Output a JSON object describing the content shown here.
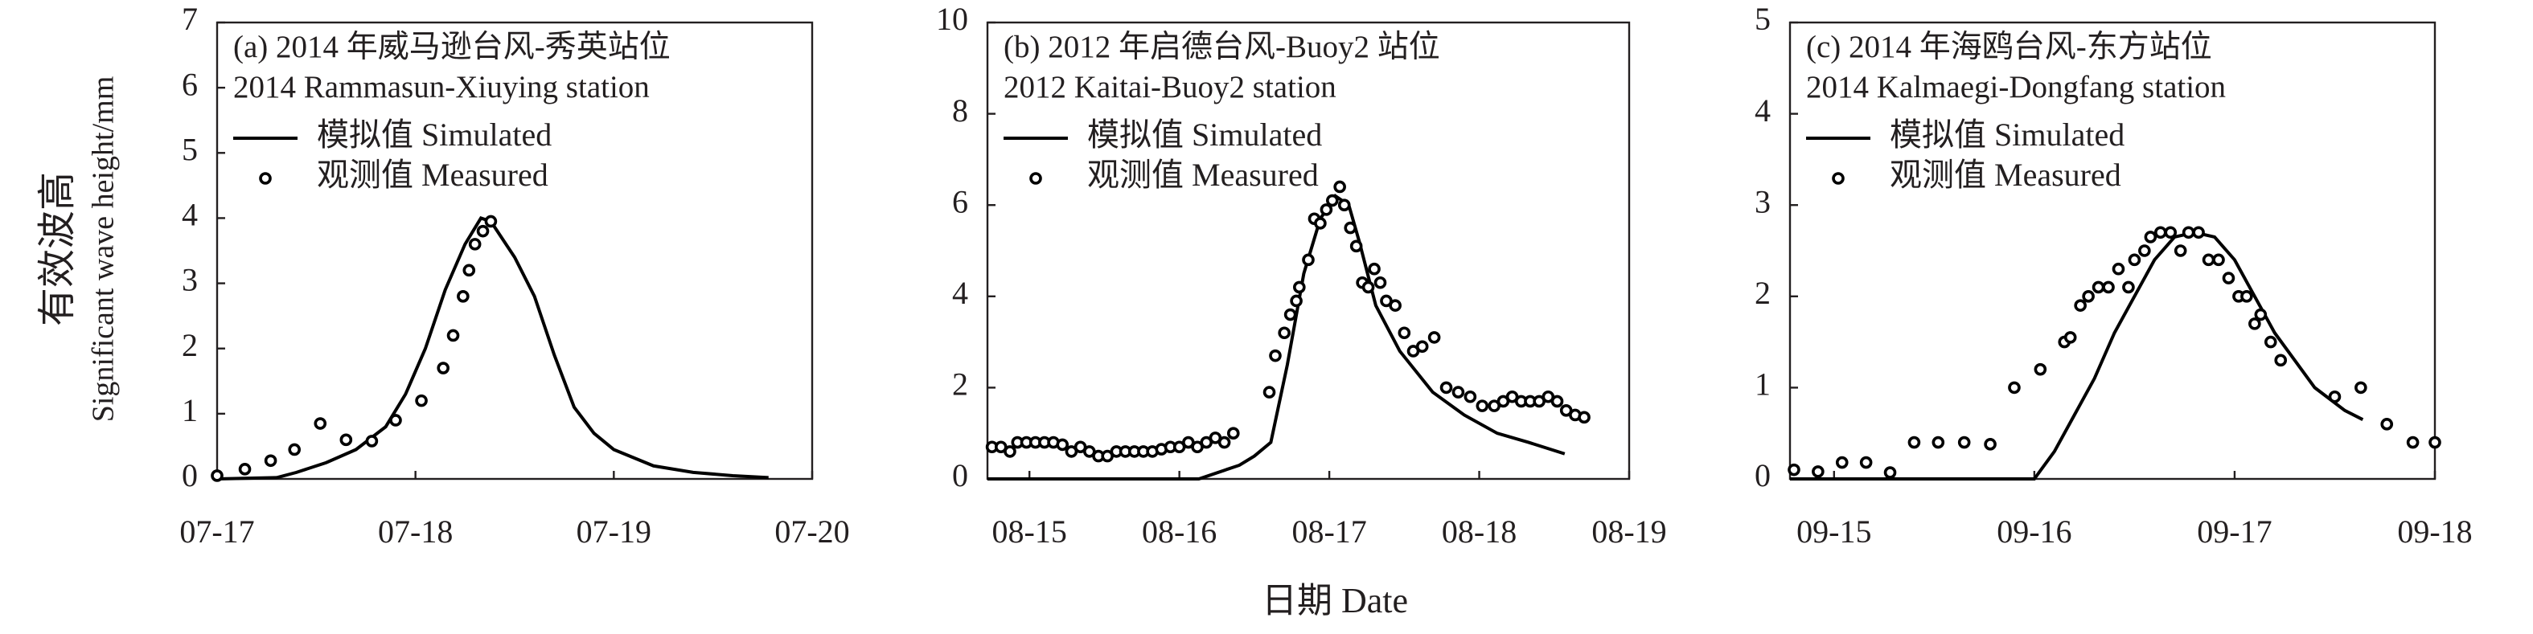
{
  "ylabel": [
    "有效波高",
    "Significant wave height/mm"
  ],
  "xlabel": "日期 Date",
  "chart_data": [
    {
      "type": "line",
      "title": "(a) 2014 年威马逊台风-秀英站位",
      "subtitle": "2014 Rammasun-Xiuying station",
      "xlim": [
        0,
        3
      ],
      "xticks": [
        {
          "value": 0,
          "label": "07-17"
        },
        {
          "value": 1,
          "label": "07-18"
        },
        {
          "value": 2,
          "label": "07-19"
        },
        {
          "value": 3,
          "label": "07-20"
        }
      ],
      "ylim": [
        0,
        7
      ],
      "yticks": [
        0,
        1,
        2,
        3,
        4,
        5,
        6,
        7
      ],
      "series": [
        {
          "name": "模拟值 Simulated",
          "color": "#000000",
          "marker": "line",
          "x": [
            0,
            0.3,
            0.4,
            0.55,
            0.7,
            0.85,
            0.95,
            1.05,
            1.15,
            1.25,
            1.33,
            1.38,
            1.5,
            1.6,
            1.7,
            1.8,
            1.9,
            2.0,
            2.2,
            2.4,
            2.6,
            2.78
          ],
          "values": [
            0,
            0.02,
            0.1,
            0.25,
            0.45,
            0.8,
            1.3,
            2.0,
            2.9,
            3.6,
            4.0,
            3.95,
            3.4,
            2.8,
            1.9,
            1.1,
            0.7,
            0.45,
            0.2,
            0.1,
            0.05,
            0.02
          ]
        },
        {
          "name": "观测值 Measured",
          "color": "#000000",
          "marker": "circle",
          "x": [
            0,
            0.14,
            0.27,
            0.39,
            0.52,
            0.65,
            0.78,
            0.9,
            1.03,
            1.14,
            1.19,
            1.24,
            1.27,
            1.3,
            1.34,
            1.38
          ],
          "values": [
            0.05,
            0.15,
            0.28,
            0.45,
            0.85,
            0.6,
            0.58,
            0.9,
            1.2,
            1.7,
            2.2,
            2.8,
            3.2,
            3.6,
            3.8,
            3.95
          ]
        }
      ]
    },
    {
      "type": "line",
      "title": "(b) 2012 年启德台风-Buoy2 站位",
      "subtitle": "2012 Kaitai-Buoy2 station",
      "xlim": [
        -0.28,
        4
      ],
      "xticks": [
        {
          "value": 0,
          "label": "08-15"
        },
        {
          "value": 1,
          "label": "08-16"
        },
        {
          "value": 2,
          "label": "08-17"
        },
        {
          "value": 3,
          "label": "08-18"
        },
        {
          "value": 4,
          "label": "08-19"
        }
      ],
      "ylim": [
        0,
        10
      ],
      "yticks": [
        0,
        2,
        4,
        6,
        8,
        10
      ],
      "series": [
        {
          "name": "模拟值 Simulated",
          "color": "#000000",
          "marker": "line",
          "x": [
            -0.28,
            1.13,
            1.4,
            1.5,
            1.61,
            1.72,
            1.83,
            1.94,
            2.04,
            2.13,
            2.2,
            2.31,
            2.47,
            2.69,
            2.9,
            3.12,
            3.33,
            3.57
          ],
          "values": [
            0,
            0,
            0.3,
            0.5,
            0.8,
            2.5,
            4.5,
            5.7,
            6.2,
            6.0,
            5.2,
            3.8,
            2.8,
            1.9,
            1.4,
            1.0,
            0.8,
            0.55
          ]
        },
        {
          "name": "观测值 Measured",
          "color": "#000000",
          "marker": "circle",
          "x": [
            -0.25,
            -0.19,
            -0.13,
            -0.08,
            -0.02,
            0.04,
            0.1,
            0.16,
            0.22,
            0.28,
            0.34,
            0.4,
            0.46,
            0.52,
            0.58,
            0.64,
            0.7,
            0.76,
            0.82,
            0.88,
            0.94,
            1.0,
            1.06,
            1.12,
            1.18,
            1.24,
            1.3,
            1.36,
            1.6,
            1.64,
            1.7,
            1.74,
            1.78,
            1.8,
            1.86,
            1.9,
            1.94,
            1.98,
            2.02,
            2.07,
            2.1,
            2.14,
            2.18,
            2.22,
            2.26,
            2.3,
            2.34,
            2.38,
            2.44,
            2.5,
            2.56,
            2.62,
            2.7,
            2.78,
            2.86,
            2.94,
            3.02,
            3.1,
            3.16,
            3.22,
            3.28,
            3.34,
            3.4,
            3.46,
            3.52,
            3.58,
            3.64,
            3.7
          ],
          "values": [
            0.7,
            0.7,
            0.6,
            0.8,
            0.8,
            0.8,
            0.8,
            0.8,
            0.75,
            0.6,
            0.7,
            0.6,
            0.5,
            0.5,
            0.6,
            0.6,
            0.6,
            0.6,
            0.6,
            0.65,
            0.7,
            0.7,
            0.8,
            0.7,
            0.8,
            0.9,
            0.8,
            1.0,
            1.9,
            2.7,
            3.2,
            3.6,
            3.9,
            4.2,
            4.8,
            5.7,
            5.6,
            5.9,
            6.1,
            6.4,
            6.0,
            5.5,
            5.1,
            4.3,
            4.2,
            4.6,
            4.3,
            3.9,
            3.8,
            3.2,
            2.8,
            2.9,
            3.1,
            2.0,
            1.9,
            1.8,
            1.6,
            1.6,
            1.7,
            1.8,
            1.7,
            1.7,
            1.7,
            1.8,
            1.7,
            1.5,
            1.4,
            1.35
          ]
        }
      ]
    },
    {
      "type": "line",
      "title": "(c) 2014 年海鸥台风-东方站位",
      "subtitle": "2014  Kalmaegi-Dongfang station",
      "xlim": [
        -0.22,
        3
      ],
      "xticks": [
        {
          "value": 0,
          "label": "09-15"
        },
        {
          "value": 1,
          "label": "09-16"
        },
        {
          "value": 2,
          "label": "09-17"
        },
        {
          "value": 3,
          "label": "09-18"
        }
      ],
      "ylim": [
        0,
        5
      ],
      "yticks": [
        0,
        1,
        2,
        3,
        4,
        5
      ],
      "series": [
        {
          "name": "模拟值 Simulated",
          "color": "#000000",
          "marker": "line",
          "x": [
            -0.22,
            1.0,
            1.1,
            1.2,
            1.3,
            1.4,
            1.5,
            1.6,
            1.7,
            1.8,
            1.9,
            2.0,
            2.1,
            2.2,
            2.3,
            2.4,
            2.55,
            2.64
          ],
          "values": [
            0,
            0,
            0.3,
            0.7,
            1.1,
            1.6,
            2.0,
            2.4,
            2.65,
            2.7,
            2.65,
            2.4,
            2.0,
            1.6,
            1.3,
            1.0,
            0.75,
            0.65
          ]
        },
        {
          "name": "观测值 Measured",
          "color": "#000000",
          "marker": "circle",
          "x": [
            -0.2,
            -0.08,
            0.04,
            0.16,
            0.28,
            0.4,
            0.52,
            0.65,
            0.78,
            0.9,
            1.03,
            1.15,
            1.18,
            1.23,
            1.27,
            1.32,
            1.37,
            1.42,
            1.47,
            1.5,
            1.55,
            1.58,
            1.63,
            1.68,
            1.73,
            1.77,
            1.82,
            1.87,
            1.92,
            1.97,
            2.02,
            2.06,
            2.1,
            2.13,
            2.18,
            2.23,
            2.5,
            2.63,
            2.76,
            2.89,
            3.0
          ],
          "values": [
            0.1,
            0.08,
            0.18,
            0.18,
            0.07,
            0.4,
            0.4,
            0.4,
            0.38,
            1.0,
            1.2,
            1.5,
            1.55,
            1.9,
            2.0,
            2.1,
            2.1,
            2.3,
            2.1,
            2.4,
            2.5,
            2.65,
            2.7,
            2.7,
            2.5,
            2.7,
            2.7,
            2.4,
            2.4,
            2.2,
            2.0,
            2.0,
            1.7,
            1.8,
            1.5,
            1.3,
            0.9,
            1.0,
            0.6,
            0.4,
            0.4
          ]
        }
      ]
    }
  ]
}
